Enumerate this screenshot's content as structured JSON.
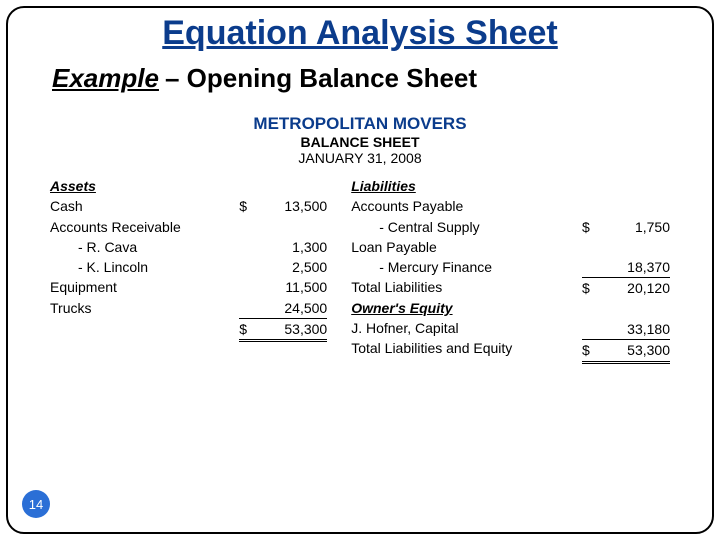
{
  "title": "Equation Analysis Sheet",
  "subtitle": {
    "example": "Example ",
    "rest": "– Opening Balance Sheet"
  },
  "header": {
    "company": "METROPOLITAN MOVERS",
    "label": "BALANCE SHEET",
    "date": "JANUARY 31, 2008"
  },
  "assets": {
    "heading": "Assets",
    "lines": {
      "cash": "Cash",
      "ar": "Accounts Receivable",
      "rcava": "- R. Cava",
      "klincoln": "- K. Lincoln",
      "equipment": "Equipment",
      "trucks": "Trucks"
    },
    "values": {
      "cash": "13,500",
      "rcava": "1,300",
      "klincoln": "2,500",
      "equipment": "11,500",
      "trucks": "24,500",
      "total": "53,300"
    }
  },
  "right": {
    "liab_heading": "Liabilities",
    "lines": {
      "ap": "Accounts Payable",
      "central": "- Central Supply",
      "loan": "Loan Payable",
      "mercury": "- Mercury Finance",
      "total_liab": "Total Liabilities"
    },
    "oe_heading": "Owner's Equity",
    "oe_lines": {
      "capital": "J. Hofner, Capital",
      "total": "Total Liabilities and Equity"
    },
    "values": {
      "central": "1,750",
      "mercury": "18,370",
      "total_liab": "20,120",
      "capital": "33,180",
      "total": "53,300"
    }
  },
  "currency": "$",
  "page": "14"
}
